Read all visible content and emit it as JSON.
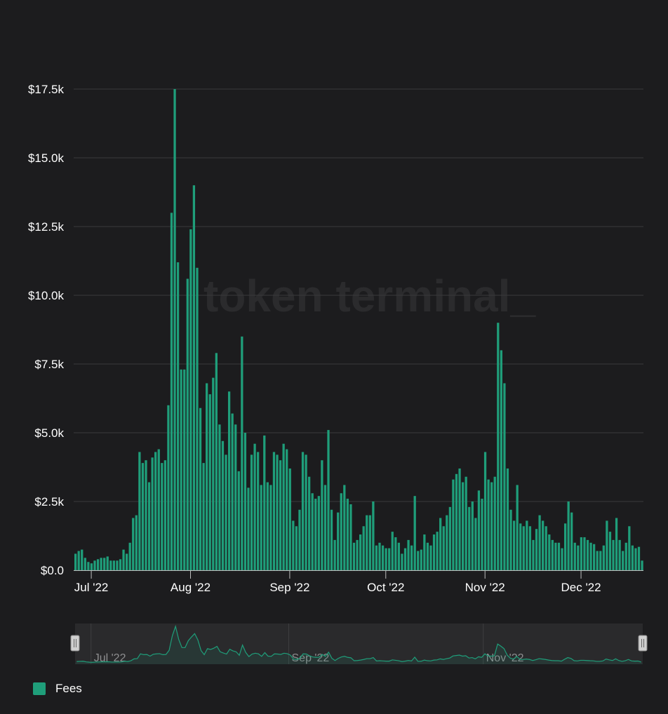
{
  "chart_data": {
    "type": "bar",
    "x_start": "2022-06-26",
    "y_ticks": [
      "$0.0",
      "$2.5k",
      "$5.0k",
      "$7.5k",
      "$10.0k",
      "$12.5k",
      "$15.0k",
      "$17.5k"
    ],
    "x_ticks": [
      "Jul '22",
      "Aug '22",
      "Sep '22",
      "Oct '22",
      "Nov '22",
      "Dec '22"
    ],
    "navigator_ticks": [
      "Jul '22",
      "Sep '22",
      "Nov '22"
    ],
    "ylim": [
      0,
      17500
    ],
    "grid": true,
    "legend_position": "bottom-left",
    "watermark": "token terminal_",
    "series": [
      {
        "name": "Fees",
        "color": "#1f9e7a",
        "values": [
          600,
          700,
          750,
          450,
          300,
          250,
          350,
          400,
          450,
          450,
          500,
          350,
          350,
          350,
          400,
          750,
          600,
          1000,
          1900,
          2000,
          4300,
          3900,
          4000,
          3200,
          4100,
          4300,
          4400,
          3900,
          4000,
          6000,
          13000,
          17500,
          11200,
          7300,
          7300,
          10600,
          12400,
          14000,
          11000,
          5900,
          3900,
          6800,
          6400,
          7000,
          7900,
          5300,
          4700,
          4200,
          6500,
          5700,
          5300,
          3600,
          8500,
          5000,
          3000,
          4200,
          4600,
          4300,
          3100,
          4900,
          3200,
          3100,
          4300,
          4200,
          4000,
          4600,
          4400,
          3700,
          1800,
          1600,
          2200,
          4300,
          4200,
          3400,
          2800,
          2600,
          2700,
          4000,
          3100,
          5100,
          2200,
          1100,
          2100,
          2800,
          3100,
          2600,
          2400,
          1000,
          1100,
          1300,
          1600,
          2000,
          2000,
          2500,
          900,
          1000,
          900,
          800,
          800,
          1400,
          1200,
          1000,
          600,
          800,
          1100,
          900,
          2700,
          700,
          750,
          1300,
          1000,
          900,
          1300,
          1400,
          1900,
          1600,
          2000,
          2300,
          3300,
          3500,
          3700,
          3200,
          3400,
          2300,
          2500,
          1900,
          2900,
          2600,
          4300,
          3300,
          3200,
          3400,
          9000,
          8000,
          6800,
          3700,
          2200,
          1800,
          3100,
          1700,
          1600,
          1800,
          1600,
          1100,
          1500,
          2000,
          1800,
          1600,
          1300,
          1100,
          1000,
          1000,
          800,
          1700,
          2500,
          2100,
          1000,
          900,
          1200,
          1200,
          1100,
          1000,
          950,
          700,
          700,
          900,
          1800,
          1400,
          1100,
          1900,
          1100,
          700,
          1000,
          1600,
          900,
          800,
          850,
          350
        ]
      }
    ]
  }
}
